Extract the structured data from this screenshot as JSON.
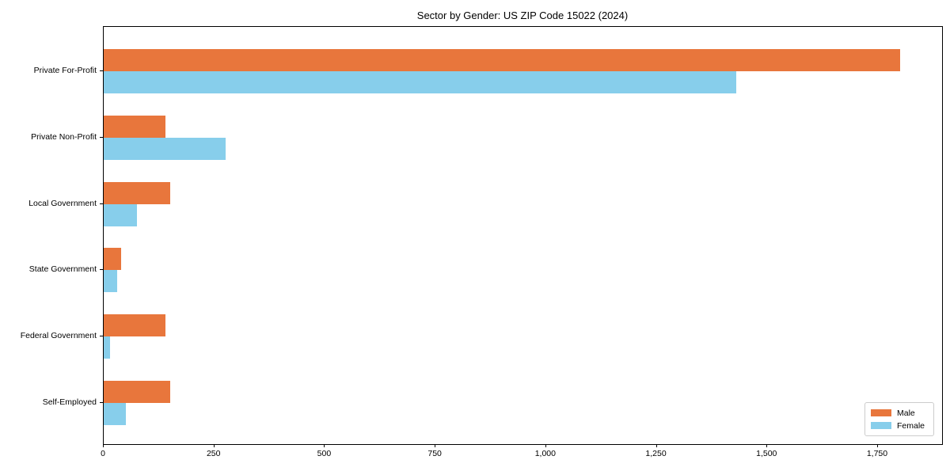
{
  "chart_data": {
    "type": "bar",
    "orientation": "horizontal",
    "title": "Sector by Gender: US ZIP Code 15022 (2024)",
    "categories": [
      "Private For-Profit",
      "Private Non-Profit",
      "Local Government",
      "State Government",
      "Federal Government",
      "Self-Employed"
    ],
    "series": [
      {
        "name": "Male",
        "color": "#e8763c",
        "values": [
          1800,
          140,
          150,
          40,
          140,
          150
        ]
      },
      {
        "name": "Female",
        "color": "#87ceeb",
        "values": [
          1430,
          275,
          75,
          30,
          15,
          50
        ]
      }
    ],
    "series_layout": "Male bar above Female bar within each category group",
    "xlabel": "",
    "ylabel": "",
    "xlim": [
      0,
      1895
    ],
    "xticks": [
      0,
      250,
      500,
      750,
      1000,
      1250,
      1500,
      1750
    ],
    "xtick_labels": [
      "0",
      "250",
      "500",
      "750",
      "1,000",
      "1,250",
      "1,500",
      "1,750"
    ],
    "grid": false,
    "legend": {
      "position": "lower-right",
      "entries": [
        "Male",
        "Female"
      ]
    }
  }
}
